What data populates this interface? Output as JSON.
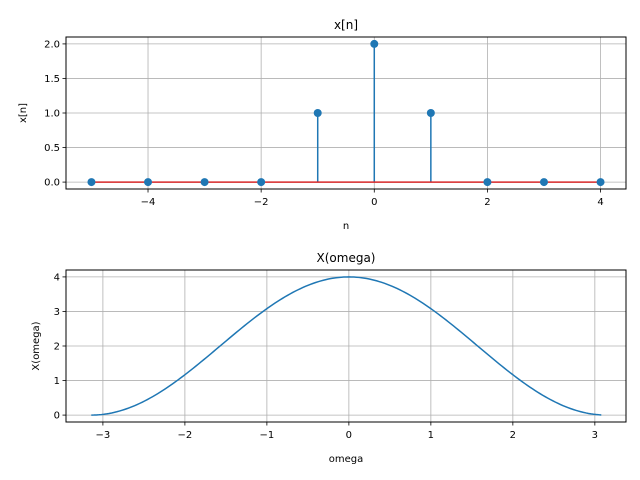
{
  "chart_data": [
    {
      "type": "stem",
      "title": "x[n]",
      "xlabel": "n",
      "ylabel": "x[n]",
      "xlim": [
        -5.45,
        4.45
      ],
      "ylim": [
        -0.1,
        2.1
      ],
      "xticks": [
        -4,
        -2,
        0,
        2,
        4
      ],
      "yticks": [
        0.0,
        0.5,
        1.0,
        1.5,
        2.0
      ],
      "xtick_labels": [
        "−4",
        "−2",
        "0",
        "2",
        "4"
      ],
      "ytick_labels": [
        "0.0",
        "0.5",
        "1.0",
        "1.5",
        "2.0"
      ],
      "grid": true,
      "x": [
        -5,
        -4,
        -3,
        -2,
        -1,
        0,
        1,
        2,
        3,
        4
      ],
      "y": [
        0,
        0,
        0,
        0,
        1,
        2,
        1,
        0,
        0,
        0
      ],
      "colors": {
        "stem": "#1f77b4",
        "baseline": "#d62728"
      }
    },
    {
      "type": "line",
      "title": "X(omega)",
      "xlabel": "omega",
      "ylabel": "X(omega)",
      "xlim": [
        -3.45,
        3.38
      ],
      "ylim": [
        -0.2,
        4.2
      ],
      "xticks": [
        -3,
        -2,
        -1,
        0,
        1,
        2,
        3
      ],
      "yticks": [
        0,
        1,
        2,
        3,
        4
      ],
      "xtick_labels": [
        "−3",
        "−2",
        "−1",
        "0",
        "1",
        "2",
        "3"
      ],
      "ytick_labels": [
        "0",
        "1",
        "2",
        "3",
        "4"
      ],
      "grid": true,
      "function": "2 + 2cos(omega)",
      "x_range": [
        -3.1416,
        3.0788
      ],
      "colors": {
        "line": "#1f77b4"
      }
    }
  ]
}
